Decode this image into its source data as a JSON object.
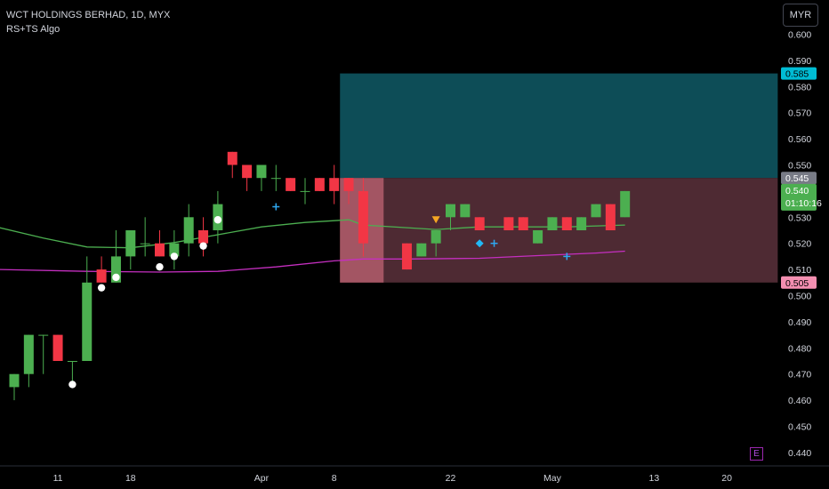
{
  "legend": {
    "title": "WCT HOLDINGS BERHAD, 1D, MYX",
    "indicator": "RS+TS Algo"
  },
  "currency_button": "MYR",
  "earnings_marker": "E",
  "colors": {
    "up": "#4caf50",
    "down": "#f23645",
    "ma_fast": "#4caf50",
    "ma_slow": "#c52fc0",
    "target_zone": "#0d4d57",
    "stop_zone": "#4e2a33",
    "entry_zone": "#a35563",
    "signal_dot": "#ffffff",
    "cross": "#2ea8f0",
    "diamond": "#21b8f5",
    "triangle": "#f5a623"
  },
  "chart_data": {
    "type": "candlestick",
    "y_axis": {
      "range": [
        0.437,
        0.609
      ],
      "ticks": [
        "0.600",
        "0.590",
        "0.580",
        "0.570",
        "0.560",
        "0.550",
        "0.540",
        "0.530",
        "0.520",
        "0.510",
        "0.500",
        "0.490",
        "0.480",
        "0.470",
        "0.460",
        "0.450",
        "0.440"
      ]
    },
    "x_axis": {
      "labels": [
        {
          "index": 3,
          "label": "11"
        },
        {
          "index": 8,
          "label": "18"
        },
        {
          "index": 17,
          "label": "Apr"
        },
        {
          "index": 22,
          "label": "8"
        },
        {
          "index": 30,
          "label": "22"
        },
        {
          "index": 37,
          "label": "May"
        },
        {
          "index": 44,
          "label": "13"
        },
        {
          "index": 49,
          "label": "20"
        }
      ]
    },
    "candles": [
      {
        "i": 0,
        "o": 0.465,
        "h": 0.47,
        "l": 0.46,
        "c": 0.47
      },
      {
        "i": 1,
        "o": 0.47,
        "h": 0.485,
        "l": 0.465,
        "c": 0.485
      },
      {
        "i": 2,
        "o": 0.485,
        "h": 0.485,
        "l": 0.47,
        "c": 0.485
      },
      {
        "i": 3,
        "o": 0.485,
        "h": 0.485,
        "l": 0.475,
        "c": 0.475
      },
      {
        "i": 4,
        "o": 0.475,
        "h": 0.475,
        "l": 0.465,
        "c": 0.475
      },
      {
        "i": 5,
        "o": 0.475,
        "h": 0.515,
        "l": 0.475,
        "c": 0.505
      },
      {
        "i": 6,
        "o": 0.51,
        "h": 0.515,
        "l": 0.505,
        "c": 0.505
      },
      {
        "i": 7,
        "o": 0.505,
        "h": 0.525,
        "l": 0.505,
        "c": 0.515
      },
      {
        "i": 8,
        "o": 0.515,
        "h": 0.525,
        "l": 0.51,
        "c": 0.525
      },
      {
        "i": 9,
        "o": 0.52,
        "h": 0.53,
        "l": 0.515,
        "c": 0.52
      },
      {
        "i": 10,
        "o": 0.52,
        "h": 0.525,
        "l": 0.515,
        "c": 0.515
      },
      {
        "i": 11,
        "o": 0.515,
        "h": 0.525,
        "l": 0.51,
        "c": 0.52
      },
      {
        "i": 12,
        "o": 0.52,
        "h": 0.535,
        "l": 0.515,
        "c": 0.53
      },
      {
        "i": 13,
        "o": 0.525,
        "h": 0.53,
        "l": 0.515,
        "c": 0.52
      },
      {
        "i": 14,
        "o": 0.525,
        "h": 0.54,
        "l": 0.52,
        "c": 0.535
      },
      {
        "i": 15,
        "o": 0.555,
        "h": 0.555,
        "l": 0.545,
        "c": 0.55
      },
      {
        "i": 16,
        "o": 0.55,
        "h": 0.55,
        "l": 0.54,
        "c": 0.545
      },
      {
        "i": 17,
        "o": 0.545,
        "h": 0.55,
        "l": 0.54,
        "c": 0.55
      },
      {
        "i": 18,
        "o": 0.545,
        "h": 0.55,
        "l": 0.54,
        "c": 0.545
      },
      {
        "i": 19,
        "o": 0.545,
        "h": 0.545,
        "l": 0.54,
        "c": 0.54
      },
      {
        "i": 20,
        "o": 0.54,
        "h": 0.545,
        "l": 0.535,
        "c": 0.54
      },
      {
        "i": 21,
        "o": 0.545,
        "h": 0.545,
        "l": 0.54,
        "c": 0.54
      },
      {
        "i": 22,
        "o": 0.545,
        "h": 0.55,
        "l": 0.535,
        "c": 0.54
      },
      {
        "i": 23,
        "o": 0.545,
        "h": 0.545,
        "l": 0.535,
        "c": 0.54
      },
      {
        "i": 24,
        "o": 0.54,
        "h": 0.545,
        "l": 0.515,
        "c": 0.52
      },
      {
        "i": 27,
        "o": 0.52,
        "h": 0.52,
        "l": 0.51,
        "c": 0.51
      },
      {
        "i": 28,
        "o": 0.515,
        "h": 0.52,
        "l": 0.515,
        "c": 0.52
      },
      {
        "i": 29,
        "o": 0.52,
        "h": 0.525,
        "l": 0.515,
        "c": 0.525
      },
      {
        "i": 30,
        "o": 0.53,
        "h": 0.535,
        "l": 0.525,
        "c": 0.535
      },
      {
        "i": 31,
        "o": 0.53,
        "h": 0.535,
        "l": 0.53,
        "c": 0.535
      },
      {
        "i": 32,
        "o": 0.53,
        "h": 0.53,
        "l": 0.525,
        "c": 0.525
      },
      {
        "i": 34,
        "o": 0.53,
        "h": 0.53,
        "l": 0.525,
        "c": 0.525
      },
      {
        "i": 35,
        "o": 0.53,
        "h": 0.53,
        "l": 0.525,
        "c": 0.525
      },
      {
        "i": 36,
        "o": 0.52,
        "h": 0.525,
        "l": 0.52,
        "c": 0.525
      },
      {
        "i": 37,
        "o": 0.525,
        "h": 0.53,
        "l": 0.525,
        "c": 0.53
      },
      {
        "i": 38,
        "o": 0.53,
        "h": 0.53,
        "l": 0.525,
        "c": 0.525
      },
      {
        "i": 39,
        "o": 0.525,
        "h": 0.53,
        "l": 0.525,
        "c": 0.53
      },
      {
        "i": 40,
        "o": 0.53,
        "h": 0.535,
        "l": 0.53,
        "c": 0.535
      },
      {
        "i": 41,
        "o": 0.535,
        "h": 0.535,
        "l": 0.525,
        "c": 0.525
      },
      {
        "i": 42,
        "o": 0.53,
        "h": 0.54,
        "l": 0.53,
        "c": 0.54
      }
    ],
    "ma_fast": [
      {
        "i": -1,
        "v": 0.526
      },
      {
        "i": 2,
        "v": 0.522
      },
      {
        "i": 5,
        "v": 0.5186
      },
      {
        "i": 8,
        "v": 0.5183
      },
      {
        "i": 11,
        "v": 0.5203
      },
      {
        "i": 14,
        "v": 0.5233
      },
      {
        "i": 17,
        "v": 0.5263
      },
      {
        "i": 20,
        "v": 0.528
      },
      {
        "i": 23,
        "v": 0.529
      },
      {
        "i": 24,
        "v": 0.527
      },
      {
        "i": 27,
        "v": 0.526
      },
      {
        "i": 29,
        "v": 0.5253
      },
      {
        "i": 32,
        "v": 0.5263
      },
      {
        "i": 35,
        "v": 0.5263
      },
      {
        "i": 38,
        "v": 0.5263
      },
      {
        "i": 42,
        "v": 0.527
      }
    ],
    "ma_slow": [
      {
        "i": -1,
        "v": 0.51
      },
      {
        "i": 5,
        "v": 0.5093
      },
      {
        "i": 10,
        "v": 0.509
      },
      {
        "i": 14,
        "v": 0.5093
      },
      {
        "i": 18,
        "v": 0.511
      },
      {
        "i": 22,
        "v": 0.5133
      },
      {
        "i": 24,
        "v": 0.514
      },
      {
        "i": 27,
        "v": 0.514
      },
      {
        "i": 32,
        "v": 0.5143
      },
      {
        "i": 36,
        "v": 0.5153
      },
      {
        "i": 40,
        "v": 0.5163
      },
      {
        "i": 42,
        "v": 0.517
      }
    ],
    "signals": {
      "dots": [
        {
          "i": 4,
          "v": 0.466
        },
        {
          "i": 6,
          "v": 0.503
        },
        {
          "i": 7,
          "v": 0.507
        },
        {
          "i": 10,
          "v": 0.511
        },
        {
          "i": 11,
          "v": 0.515
        },
        {
          "i": 13,
          "v": 0.519
        },
        {
          "i": 14,
          "v": 0.529
        }
      ],
      "crosses": [
        {
          "i": 18,
          "v": 0.534
        },
        {
          "i": 33,
          "v": 0.52
        },
        {
          "i": 38,
          "v": 0.515
        }
      ],
      "diamonds": [
        {
          "i": 32,
          "v": 0.52
        }
      ],
      "triangles_down": [
        {
          "i": 29,
          "v": 0.529
        }
      ]
    },
    "position_tool": {
      "start_i": 22.4,
      "end_i": 52.5,
      "entry": 0.545,
      "target": 0.585,
      "stop": 0.505,
      "entry_box_end_i": 25.4
    },
    "price_tags": [
      {
        "value": "0.585",
        "sub": "",
        "bg": "#00bcd4",
        "fg": "#000000"
      },
      {
        "value": "0.545",
        "sub": "",
        "bg": "#787b86",
        "fg": "#ffffff"
      },
      {
        "value": "0.540",
        "sub": "01:10:16",
        "bg": "#4caf50",
        "fg": "#ffffff"
      },
      {
        "value": "0.505",
        "sub": "",
        "bg": "#f48fb1",
        "fg": "#000000"
      }
    ]
  }
}
